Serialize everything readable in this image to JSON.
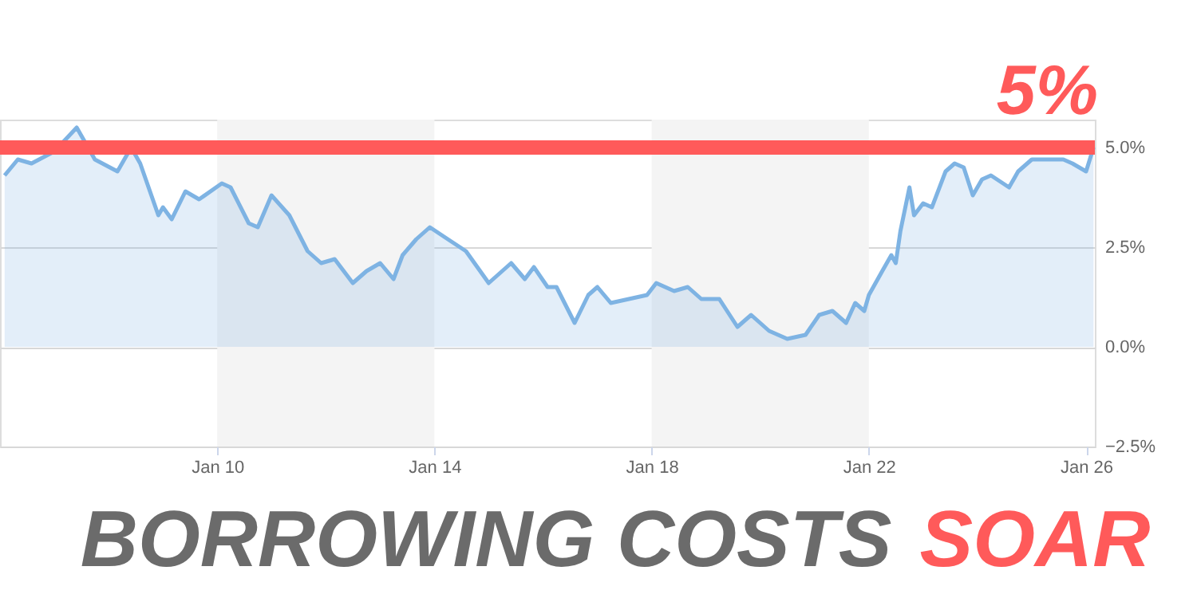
{
  "chart_data": {
    "type": "area",
    "title": "BORROWING COSTS SOAR",
    "x": [
      "2006-02",
      "2006-05",
      "2006-08",
      "2007-01",
      "2007-06",
      "2007-10",
      "2008-03",
      "2008-06",
      "2008-08",
      "2008-12",
      "2009-01",
      "2009-03",
      "2009-06",
      "2009-09",
      "2010-02",
      "2010-04",
      "2010-08",
      "2010-10",
      "2011-01",
      "2011-05",
      "2011-09",
      "2011-12",
      "2012-03",
      "2012-07",
      "2012-10",
      "2013-01",
      "2013-04",
      "2013-06",
      "2013-09",
      "2013-12",
      "2014-04",
      "2014-08",
      "2015-01",
      "2015-06",
      "2015-09",
      "2015-11",
      "2016-02",
      "2016-04",
      "2016-08",
      "2016-11",
      "2017-01",
      "2017-04",
      "2017-08",
      "2017-12",
      "2018-02",
      "2018-06",
      "2018-09",
      "2018-12",
      "2019-04",
      "2019-08",
      "2019-11",
      "2020-03",
      "2020-07",
      "2020-11",
      "2021-02",
      "2021-05",
      "2021-08",
      "2021-10",
      "2021-12",
      "2022-01",
      "2022-04",
      "2022-06",
      "2022-07",
      "2022-08",
      "2022-10",
      "2022-11",
      "2023-01",
      "2023-03",
      "2023-06",
      "2023-08",
      "2023-10",
      "2023-12",
      "2024-02",
      "2024-04",
      "2024-08",
      "2024-10",
      "2025-01",
      "2025-05",
      "2025-08",
      "2025-10",
      "2026-01-01",
      "2026-02-20"
    ],
    "series": [
      {
        "color": "#7eb3e3",
        "values": [
          4.3,
          4.7,
          4.6,
          4.9,
          5.5,
          4.7,
          4.4,
          5.0,
          4.6,
          3.3,
          3.5,
          3.2,
          3.9,
          3.7,
          4.1,
          4.0,
          3.1,
          3.0,
          3.8,
          3.3,
          2.4,
          2.1,
          2.2,
          1.6,
          1.9,
          2.1,
          1.7,
          2.3,
          2.7,
          3.0,
          2.7,
          2.4,
          1.6,
          2.1,
          1.7,
          2.0,
          1.5,
          1.5,
          0.6,
          1.3,
          1.5,
          1.1,
          1.2,
          1.3,
          1.6,
          1.4,
          1.5,
          1.2,
          1.2,
          0.5,
          0.8,
          0.4,
          0.2,
          0.3,
          0.8,
          0.9,
          0.6,
          1.1,
          0.9,
          1.3,
          1.9,
          2.3,
          2.1,
          2.9,
          4.0,
          3.3,
          3.6,
          3.5,
          4.4,
          4.6,
          4.5,
          3.8,
          4.2,
          4.3,
          4.0,
          4.4,
          4.7,
          4.7,
          4.7,
          4.6,
          4.4,
          5.0
        ]
      }
    ],
    "xlim": [
      "2006-01-01",
      "2026-03-01"
    ],
    "xticks": [
      {
        "value": "2010-01-01",
        "label": "Jan 10"
      },
      {
        "value": "2014-01-01",
        "label": "Jan 14"
      },
      {
        "value": "2018-01-01",
        "label": "Jan 18"
      },
      {
        "value": "2022-01-01",
        "label": "Jan 22"
      },
      {
        "value": "2026-01-01",
        "label": "Jan 26"
      }
    ],
    "ylim": [
      -2.5,
      5.7
    ],
    "yticks": [
      {
        "value": -2.5,
        "label": "−2.5%"
      },
      {
        "value": 0,
        "label": "0.0%"
      },
      {
        "value": 2.5,
        "label": "2.5%"
      },
      {
        "value": 5,
        "label": "5.0%"
      }
    ],
    "grid": "y",
    "bands": [
      {
        "axis": "x",
        "from": "2010-01-01",
        "to": "2014-01-01",
        "color": "#f4f4f4"
      },
      {
        "axis": "x",
        "from": "2018-01-01",
        "to": "2022-01-01",
        "color": "#f4f4f4"
      }
    ],
    "ref_lines": [
      {
        "axis": "y",
        "value": 5,
        "label": "5%",
        "color": "#ff5a5a"
      }
    ]
  }
}
